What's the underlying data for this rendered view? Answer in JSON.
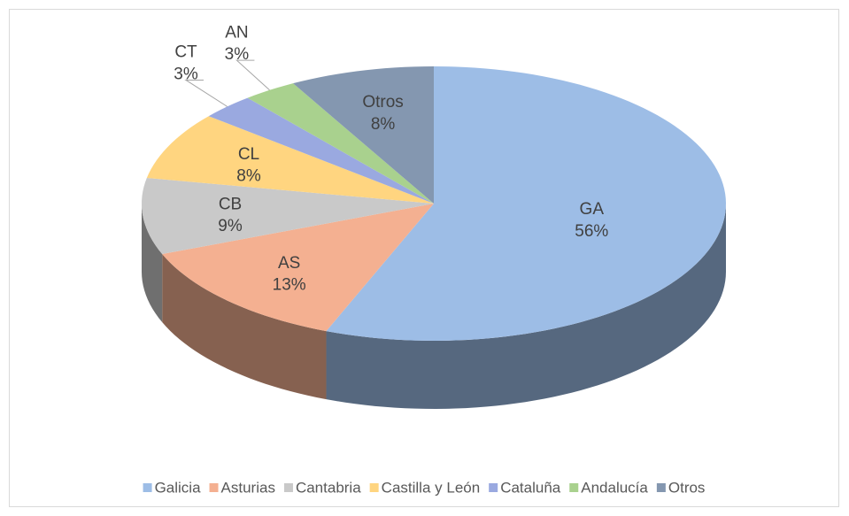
{
  "chart_data": {
    "type": "pie3d",
    "categories": [
      "Galicia",
      "Asturias",
      "Cantabria",
      "Castilla y León",
      "Cataluña",
      "Andalucía",
      "Otros"
    ],
    "slice_labels": [
      "GA",
      "AS",
      "CB",
      "CL",
      "CT",
      "AN",
      "Otros"
    ],
    "values": [
      56,
      13,
      9,
      8,
      3,
      3,
      8
    ],
    "value_labels": [
      "56%",
      "13%",
      "9%",
      "8%",
      "3%",
      "3%",
      "8%"
    ],
    "colors": [
      "#9dbde6",
      "#f4b091",
      "#c9c9c9",
      "#ffd580",
      "#9aa9e0",
      "#a9d18e",
      "#8497b0"
    ],
    "legend": "bottom"
  }
}
